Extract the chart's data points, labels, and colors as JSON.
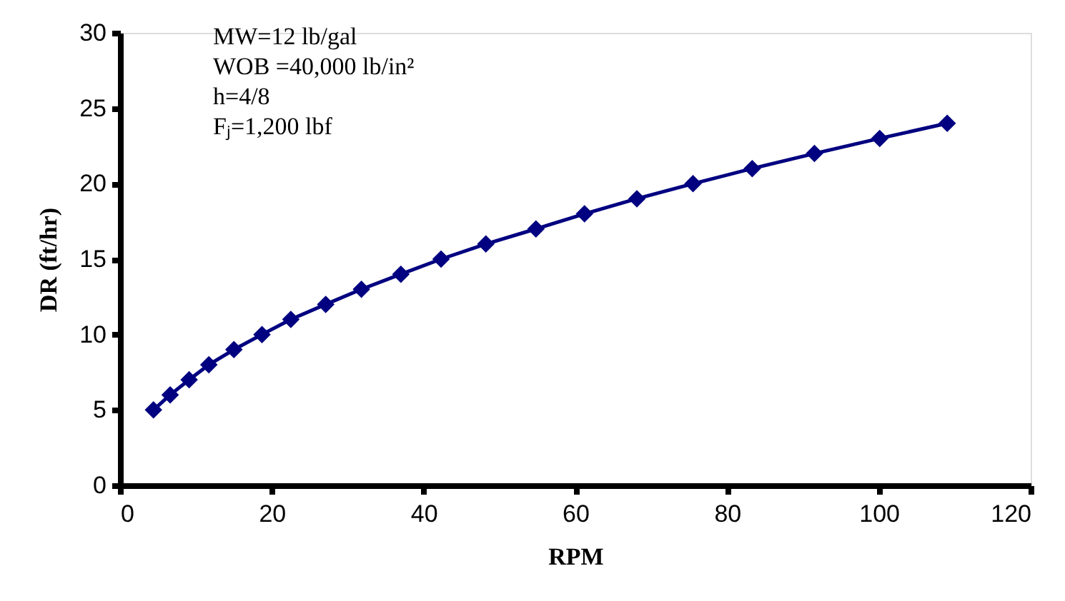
{
  "chart_data": {
    "type": "line",
    "xlabel": "RPM",
    "ylabel": "DR (ft/hr)",
    "annotations": [
      "MW=12 lb/gal",
      "WOB =40,000 lb/in²",
      "h=4/8",
      "Fⱼ=1,200 lbf"
    ],
    "x": [
      4.4,
      6.6,
      9.1,
      11.7,
      15.0,
      18.7,
      22.5,
      27.1,
      31.8,
      37.0,
      42.3,
      48.2,
      54.8,
      61.2,
      68.1,
      75.5,
      83.3,
      91.5,
      100.1,
      109.0
    ],
    "series": [
      {
        "color": "#000080",
        "values": [
          5,
          6,
          7,
          8,
          9,
          10,
          11,
          12,
          13,
          14,
          15,
          16,
          17,
          18,
          19,
          20,
          21,
          22,
          23,
          24
        ]
      }
    ],
    "xlim": [
      0,
      120
    ],
    "ylim": [
      0,
      30
    ],
    "xticks": [
      0,
      20,
      40,
      60,
      80,
      100,
      120
    ],
    "yticks": [
      0,
      5,
      10,
      15,
      20,
      25,
      30
    ],
    "marker": "diamond",
    "line_style": "solid",
    "grid": false,
    "legend": false
  }
}
